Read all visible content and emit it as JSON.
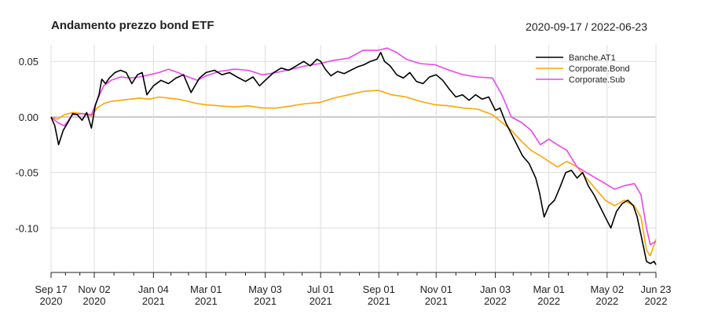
{
  "chart_data": {
    "type": "line",
    "title": "Andamento prezzo bond ETF",
    "date_range": "2020-09-17 / 2022-06-23",
    "xlabel": "",
    "ylabel": "",
    "x_start": "2020-09-17",
    "x_end": "2022-06-23",
    "ylim": [
      -0.14,
      0.065
    ],
    "yticks": [
      {
        "value": 0.05,
        "label": "0.05"
      },
      {
        "value": 0.0,
        "label": "0.00"
      },
      {
        "value": -0.05,
        "label": "-0.05"
      },
      {
        "value": -0.1,
        "label": "-0.10"
      }
    ],
    "xticks": [
      {
        "date": "2020-09-17",
        "label1": "Sep 17",
        "label2": "2020"
      },
      {
        "date": "2020-11-02",
        "label1": "Nov 02",
        "label2": "2020"
      },
      {
        "date": "2021-01-04",
        "label1": "Jan 04",
        "label2": "2021"
      },
      {
        "date": "2021-03-01",
        "label1": "Mar 01",
        "label2": "2021"
      },
      {
        "date": "2021-05-03",
        "label1": "May 03",
        "label2": "2021"
      },
      {
        "date": "2021-07-01",
        "label1": "Jul 01",
        "label2": "2021"
      },
      {
        "date": "2021-09-01",
        "label1": "Sep 01",
        "label2": "2021"
      },
      {
        "date": "2021-11-01",
        "label1": "Nov 01",
        "label2": "2021"
      },
      {
        "date": "2022-01-03",
        "label1": "Jan 03",
        "label2": "2022"
      },
      {
        "date": "2022-03-01",
        "label1": "Mar 01",
        "label2": "2022"
      },
      {
        "date": "2022-05-02",
        "label1": "May 02",
        "label2": "2022"
      },
      {
        "date": "2022-06-23",
        "label1": "Jun 23",
        "label2": "2022"
      }
    ],
    "grid": true,
    "legend_position": "top-right",
    "series": [
      {
        "name": "Banche.AT1",
        "color": "#000000",
        "points": [
          [
            "2020-09-17",
            0.0
          ],
          [
            "2020-09-21",
            -0.008
          ],
          [
            "2020-09-25",
            -0.025
          ],
          [
            "2020-09-30",
            -0.012
          ],
          [
            "2020-10-05",
            -0.005
          ],
          [
            "2020-10-10",
            0.003
          ],
          [
            "2020-10-15",
            0.002
          ],
          [
            "2020-10-20",
            -0.003
          ],
          [
            "2020-10-25",
            0.004
          ],
          [
            "2020-10-30",
            -0.01
          ],
          [
            "2020-11-03",
            0.01
          ],
          [
            "2020-11-07",
            0.02
          ],
          [
            "2020-11-10",
            0.034
          ],
          [
            "2020-11-14",
            0.03
          ],
          [
            "2020-11-18",
            0.035
          ],
          [
            "2020-11-24",
            0.04
          ],
          [
            "2020-11-30",
            0.042
          ],
          [
            "2020-12-06",
            0.04
          ],
          [
            "2020-12-12",
            0.03
          ],
          [
            "2020-12-18",
            0.038
          ],
          [
            "2020-12-23",
            0.04
          ],
          [
            "2020-12-28",
            0.02
          ],
          [
            "2021-01-04",
            0.028
          ],
          [
            "2021-01-12",
            0.033
          ],
          [
            "2021-01-20",
            0.03
          ],
          [
            "2021-01-28",
            0.035
          ],
          [
            "2021-02-05",
            0.038
          ],
          [
            "2021-02-13",
            0.022
          ],
          [
            "2021-02-22",
            0.035
          ],
          [
            "2021-03-01",
            0.04
          ],
          [
            "2021-03-10",
            0.042
          ],
          [
            "2021-03-18",
            0.038
          ],
          [
            "2021-03-26",
            0.04
          ],
          [
            "2021-04-03",
            0.036
          ],
          [
            "2021-04-12",
            0.032
          ],
          [
            "2021-04-20",
            0.036
          ],
          [
            "2021-04-27",
            0.028
          ],
          [
            "2021-05-03",
            0.033
          ],
          [
            "2021-05-12",
            0.04
          ],
          [
            "2021-05-20",
            0.044
          ],
          [
            "2021-05-28",
            0.042
          ],
          [
            "2021-06-05",
            0.046
          ],
          [
            "2021-06-13",
            0.05
          ],
          [
            "2021-06-20",
            0.046
          ],
          [
            "2021-06-27",
            0.052
          ],
          [
            "2021-07-01",
            0.05
          ],
          [
            "2021-07-06",
            0.043
          ],
          [
            "2021-07-12",
            0.037
          ],
          [
            "2021-07-19",
            0.041
          ],
          [
            "2021-07-26",
            0.039
          ],
          [
            "2021-08-02",
            0.042
          ],
          [
            "2021-08-09",
            0.045
          ],
          [
            "2021-08-16",
            0.047
          ],
          [
            "2021-08-23",
            0.05
          ],
          [
            "2021-08-30",
            0.052
          ],
          [
            "2021-09-03",
            0.058
          ],
          [
            "2021-09-07",
            0.05
          ],
          [
            "2021-09-13",
            0.046
          ],
          [
            "2021-09-20",
            0.038
          ],
          [
            "2021-09-27",
            0.035
          ],
          [
            "2021-10-04",
            0.04
          ],
          [
            "2021-10-11",
            0.032
          ],
          [
            "2021-10-18",
            0.03
          ],
          [
            "2021-10-25",
            0.036
          ],
          [
            "2021-11-01",
            0.038
          ],
          [
            "2021-11-08",
            0.033
          ],
          [
            "2021-11-15",
            0.025
          ],
          [
            "2021-11-22",
            0.018
          ],
          [
            "2021-11-29",
            0.02
          ],
          [
            "2021-12-06",
            0.015
          ],
          [
            "2021-12-13",
            0.02
          ],
          [
            "2021-12-20",
            0.016
          ],
          [
            "2021-12-27",
            0.018
          ],
          [
            "2022-01-03",
            0.006
          ],
          [
            "2022-01-08",
            0.008
          ],
          [
            "2022-01-14",
            -0.005
          ],
          [
            "2022-01-20",
            -0.015
          ],
          [
            "2022-01-26",
            -0.025
          ],
          [
            "2022-02-01",
            -0.035
          ],
          [
            "2022-02-08",
            -0.042
          ],
          [
            "2022-02-15",
            -0.055
          ],
          [
            "2022-02-19",
            -0.068
          ],
          [
            "2022-02-24",
            -0.09
          ],
          [
            "2022-03-01",
            -0.08
          ],
          [
            "2022-03-07",
            -0.075
          ],
          [
            "2022-03-13",
            -0.063
          ],
          [
            "2022-03-19",
            -0.05
          ],
          [
            "2022-03-25",
            -0.048
          ],
          [
            "2022-03-31",
            -0.055
          ],
          [
            "2022-04-06",
            -0.05
          ],
          [
            "2022-04-12",
            -0.062
          ],
          [
            "2022-04-18",
            -0.07
          ],
          [
            "2022-04-24",
            -0.08
          ],
          [
            "2022-04-30",
            -0.09
          ],
          [
            "2022-05-06",
            -0.1
          ],
          [
            "2022-05-12",
            -0.085
          ],
          [
            "2022-05-18",
            -0.078
          ],
          [
            "2022-05-24",
            -0.075
          ],
          [
            "2022-05-30",
            -0.08
          ],
          [
            "2022-06-03",
            -0.09
          ],
          [
            "2022-06-08",
            -0.11
          ],
          [
            "2022-06-13",
            -0.13
          ],
          [
            "2022-06-17",
            -0.132
          ],
          [
            "2022-06-21",
            -0.13
          ],
          [
            "2022-06-23",
            -0.133
          ]
        ]
      },
      {
        "name": "Corporate.Bond",
        "color": "#FFA500",
        "points": [
          [
            "2020-09-17",
            0.0
          ],
          [
            "2020-09-24",
            -0.002
          ],
          [
            "2020-10-01",
            0.002
          ],
          [
            "2020-10-10",
            0.004
          ],
          [
            "2020-10-20",
            0.003
          ],
          [
            "2020-10-30",
            0.001
          ],
          [
            "2020-11-05",
            0.008
          ],
          [
            "2020-11-12",
            0.012
          ],
          [
            "2020-11-20",
            0.014
          ],
          [
            "2020-11-30",
            0.015
          ],
          [
            "2020-12-10",
            0.016
          ],
          [
            "2020-12-20",
            0.017
          ],
          [
            "2020-12-31",
            0.016
          ],
          [
            "2021-01-10",
            0.018
          ],
          [
            "2021-01-20",
            0.017
          ],
          [
            "2021-01-30",
            0.016
          ],
          [
            "2021-02-10",
            0.014
          ],
          [
            "2021-02-20",
            0.012
          ],
          [
            "2021-03-01",
            0.011
          ],
          [
            "2021-03-15",
            0.01
          ],
          [
            "2021-03-31",
            0.009
          ],
          [
            "2021-04-15",
            0.01
          ],
          [
            "2021-04-30",
            0.008
          ],
          [
            "2021-05-15",
            0.008
          ],
          [
            "2021-05-31",
            0.01
          ],
          [
            "2021-06-15",
            0.012
          ],
          [
            "2021-06-30",
            0.013
          ],
          [
            "2021-07-15",
            0.017
          ],
          [
            "2021-07-31",
            0.02
          ],
          [
            "2021-08-15",
            0.023
          ],
          [
            "2021-08-31",
            0.024
          ],
          [
            "2021-09-15",
            0.02
          ],
          [
            "2021-09-30",
            0.018
          ],
          [
            "2021-10-15",
            0.014
          ],
          [
            "2021-10-31",
            0.011
          ],
          [
            "2021-11-15",
            0.01
          ],
          [
            "2021-11-30",
            0.008
          ],
          [
            "2021-12-15",
            0.007
          ],
          [
            "2021-12-31",
            0.002
          ],
          [
            "2022-01-10",
            -0.005
          ],
          [
            "2022-01-20",
            -0.012
          ],
          [
            "2022-01-31",
            -0.022
          ],
          [
            "2022-02-10",
            -0.03
          ],
          [
            "2022-02-20",
            -0.035
          ],
          [
            "2022-03-01",
            -0.04
          ],
          [
            "2022-03-10",
            -0.045
          ],
          [
            "2022-03-20",
            -0.04
          ],
          [
            "2022-03-31",
            -0.045
          ],
          [
            "2022-04-10",
            -0.055
          ],
          [
            "2022-04-20",
            -0.065
          ],
          [
            "2022-04-30",
            -0.075
          ],
          [
            "2022-05-10",
            -0.08
          ],
          [
            "2022-05-20",
            -0.075
          ],
          [
            "2022-05-31",
            -0.08
          ],
          [
            "2022-06-07",
            -0.09
          ],
          [
            "2022-06-13",
            -0.12
          ],
          [
            "2022-06-17",
            -0.125
          ],
          [
            "2022-06-23",
            -0.11
          ]
        ]
      },
      {
        "name": "Corporate.Sub",
        "color": "#EE44EE",
        "points": [
          [
            "2020-09-17",
            0.0
          ],
          [
            "2020-09-24",
            -0.005
          ],
          [
            "2020-10-01",
            -0.008
          ],
          [
            "2020-10-10",
            0.002
          ],
          [
            "2020-10-20",
            0.003
          ],
          [
            "2020-10-30",
            0.002
          ],
          [
            "2020-11-05",
            0.015
          ],
          [
            "2020-11-12",
            0.028
          ],
          [
            "2020-11-20",
            0.033
          ],
          [
            "2020-11-30",
            0.036
          ],
          [
            "2020-12-10",
            0.035
          ],
          [
            "2020-12-20",
            0.036
          ],
          [
            "2020-12-31",
            0.038
          ],
          [
            "2021-01-10",
            0.04
          ],
          [
            "2021-01-20",
            0.043
          ],
          [
            "2021-01-30",
            0.04
          ],
          [
            "2021-02-10",
            0.036
          ],
          [
            "2021-02-20",
            0.033
          ],
          [
            "2021-03-01",
            0.037
          ],
          [
            "2021-03-15",
            0.041
          ],
          [
            "2021-03-31",
            0.043
          ],
          [
            "2021-04-15",
            0.042
          ],
          [
            "2021-04-30",
            0.038
          ],
          [
            "2021-05-15",
            0.04
          ],
          [
            "2021-05-31",
            0.043
          ],
          [
            "2021-06-15",
            0.046
          ],
          [
            "2021-06-30",
            0.048
          ],
          [
            "2021-07-15",
            0.051
          ],
          [
            "2021-07-31",
            0.053
          ],
          [
            "2021-08-15",
            0.06
          ],
          [
            "2021-08-31",
            0.06
          ],
          [
            "2021-09-10",
            0.062
          ],
          [
            "2021-09-20",
            0.058
          ],
          [
            "2021-09-30",
            0.052
          ],
          [
            "2021-10-15",
            0.048
          ],
          [
            "2021-10-31",
            0.047
          ],
          [
            "2021-11-15",
            0.042
          ],
          [
            "2021-11-30",
            0.038
          ],
          [
            "2021-12-15",
            0.036
          ],
          [
            "2021-12-31",
            0.035
          ],
          [
            "2022-01-10",
            0.02
          ],
          [
            "2022-01-20",
            0.0
          ],
          [
            "2022-01-31",
            -0.005
          ],
          [
            "2022-02-10",
            -0.012
          ],
          [
            "2022-02-20",
            -0.025
          ],
          [
            "2022-03-01",
            -0.02
          ],
          [
            "2022-03-10",
            -0.025
          ],
          [
            "2022-03-20",
            -0.03
          ],
          [
            "2022-03-31",
            -0.045
          ],
          [
            "2022-04-10",
            -0.05
          ],
          [
            "2022-04-20",
            -0.055
          ],
          [
            "2022-04-30",
            -0.06
          ],
          [
            "2022-05-10",
            -0.065
          ],
          [
            "2022-05-20",
            -0.062
          ],
          [
            "2022-05-31",
            -0.06
          ],
          [
            "2022-06-07",
            -0.07
          ],
          [
            "2022-06-13",
            -0.1
          ],
          [
            "2022-06-17",
            -0.115
          ],
          [
            "2022-06-23",
            -0.112
          ]
        ]
      }
    ]
  }
}
